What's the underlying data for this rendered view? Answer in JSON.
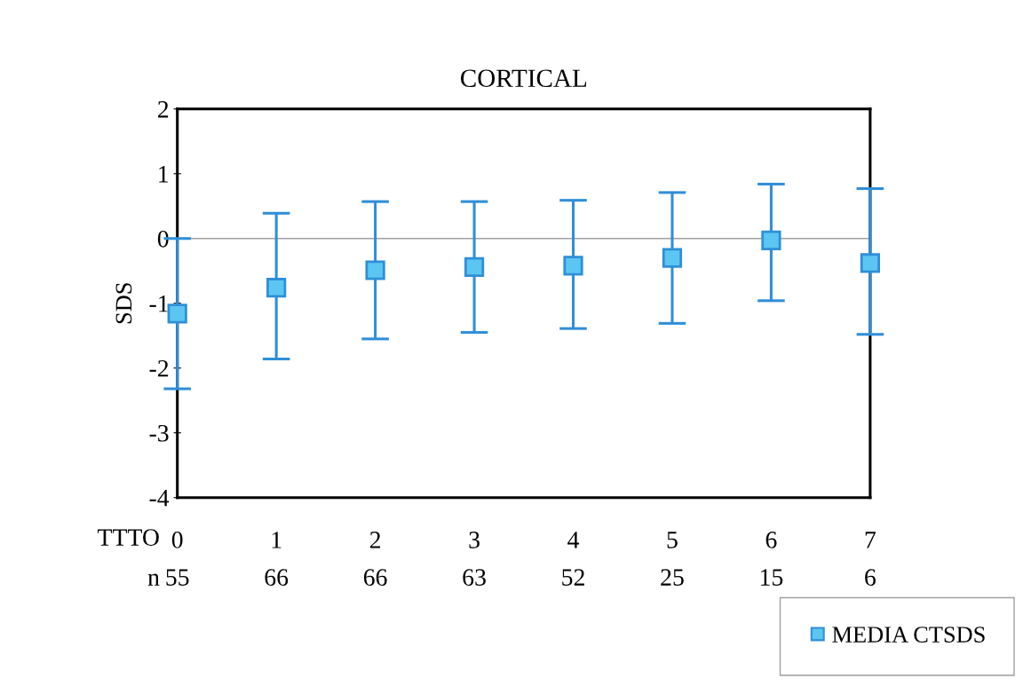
{
  "chart_data": {
    "type": "scatter",
    "title": "CORTICAL",
    "ylabel": "SDS",
    "categories": [
      "0",
      "1",
      "2",
      "3",
      "4",
      "5",
      "6",
      "7"
    ],
    "series": [
      {
        "name": "MEDIA CTSDS",
        "color": "#2f8fd8",
        "values": [
          -1.16,
          -0.76,
          -0.49,
          -0.44,
          -0.42,
          -0.3,
          -0.03,
          -0.38
        ],
        "errors": [
          [
            -2.32,
            0.0
          ],
          [
            -1.86,
            0.39
          ],
          [
            -1.55,
            0.57
          ],
          [
            -1.45,
            0.57
          ],
          [
            -1.39,
            0.59
          ],
          [
            -1.31,
            0.71
          ],
          [
            -0.96,
            0.84
          ],
          [
            -1.48,
            0.77
          ]
        ]
      }
    ],
    "ylim": [
      -4,
      2
    ],
    "yticks": [
      -4,
      -3,
      -2,
      -1,
      0,
      1,
      2
    ],
    "ref_lines": [
      {
        "axis": "y",
        "value": 0,
        "color": "#a0a0a0"
      }
    ],
    "marker": "square",
    "grid": false,
    "legend": "bottom right",
    "annotations": [
      "TTTO",
      "n",
      "55",
      "66",
      "66",
      "63",
      "52",
      "25",
      "15",
      "6"
    ]
  }
}
